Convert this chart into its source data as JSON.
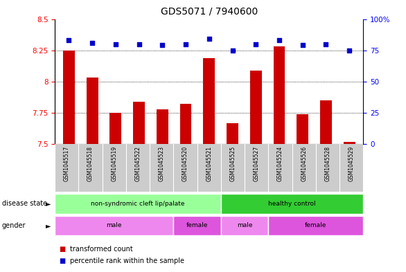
{
  "title": "GDS5071 / 7940600",
  "samples": [
    "GSM1045517",
    "GSM1045518",
    "GSM1045519",
    "GSM1045522",
    "GSM1045523",
    "GSM1045520",
    "GSM1045521",
    "GSM1045525",
    "GSM1045527",
    "GSM1045524",
    "GSM1045526",
    "GSM1045528",
    "GSM1045529"
  ],
  "bar_values": [
    8.25,
    8.03,
    7.75,
    7.84,
    7.78,
    7.82,
    8.19,
    7.67,
    8.09,
    8.28,
    7.74,
    7.85,
    7.52
  ],
  "dot_values": [
    83,
    81,
    80,
    80,
    79,
    80,
    84,
    75,
    80,
    83,
    79,
    80,
    75
  ],
  "bar_color": "#cc0000",
  "dot_color": "#0000cc",
  "ymin": 7.5,
  "ymax": 8.5,
  "yticks": [
    7.5,
    7.75,
    8.0,
    8.25,
    8.5
  ],
  "ytick_labels": [
    "7.5",
    "7.75",
    "8",
    "8.25",
    "8.5"
  ],
  "y2min": 0,
  "y2max": 100,
  "y2ticks": [
    0,
    25,
    50,
    75,
    100
  ],
  "y2tick_labels": [
    "0",
    "25",
    "50",
    "75",
    "100%"
  ],
  "gridlines": [
    7.75,
    8.0,
    8.25
  ],
  "disease_state_groups": [
    {
      "label": "non-syndromic cleft lip/palate",
      "start": 0,
      "end": 7,
      "color": "#99ff99"
    },
    {
      "label": "healthy control",
      "start": 7,
      "end": 13,
      "color": "#33cc33"
    }
  ],
  "gender_groups": [
    {
      "label": "male",
      "start": 0,
      "end": 5,
      "color": "#ee88ee"
    },
    {
      "label": "female",
      "start": 5,
      "end": 7,
      "color": "#dd55dd"
    },
    {
      "label": "male",
      "start": 7,
      "end": 9,
      "color": "#ee88ee"
    },
    {
      "label": "female",
      "start": 9,
      "end": 13,
      "color": "#dd55dd"
    }
  ],
  "legend_items": [
    {
      "label": "transformed count",
      "color": "#cc0000"
    },
    {
      "label": "percentile rank within the sample",
      "color": "#0000cc"
    }
  ],
  "bar_width": 0.5,
  "background_color": "#ffffff",
  "label_row1": "disease state",
  "label_row2": "gender",
  "title_fontsize": 10,
  "tick_fontsize": 7.5
}
